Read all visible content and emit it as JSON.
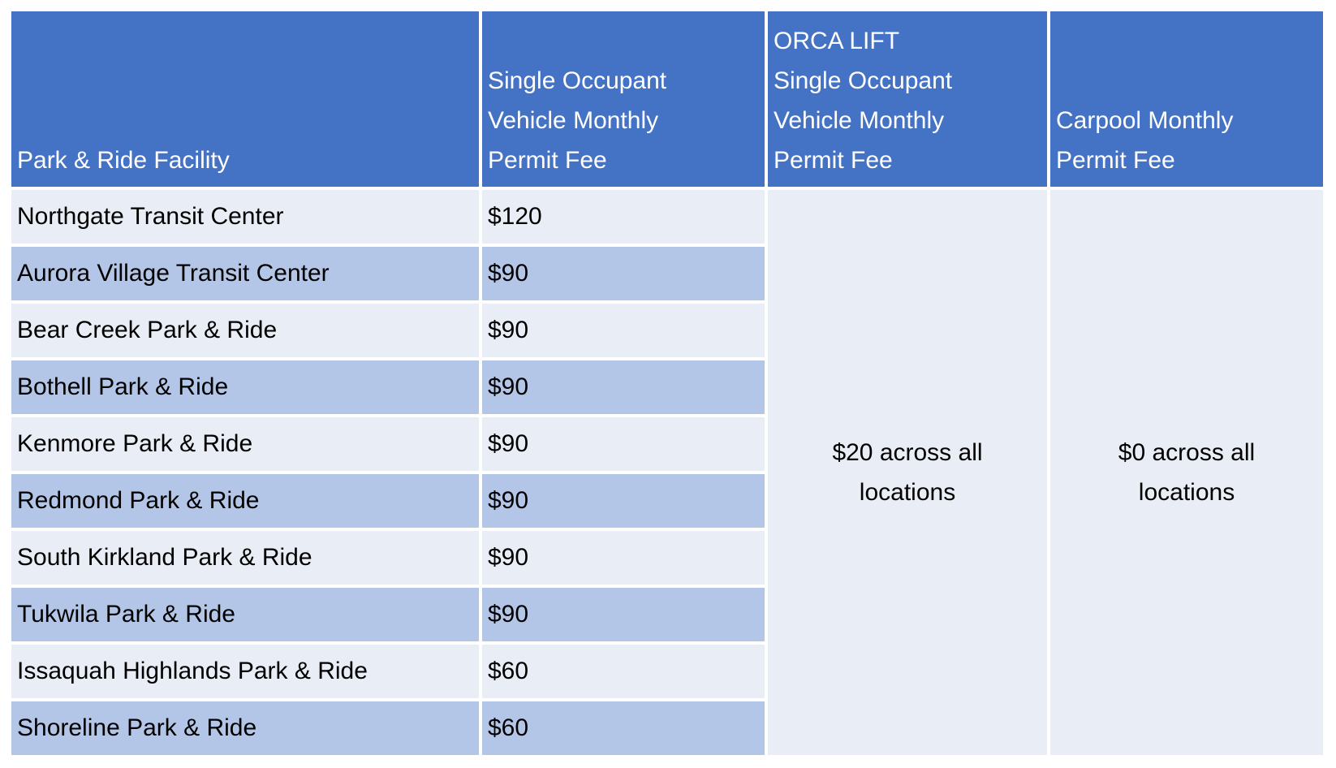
{
  "table": {
    "columns": [
      {
        "label": "Park & Ride Facility"
      },
      {
        "label": "Single Occupant\nVehicle Monthly\nPermit Fee"
      },
      {
        "label": "ORCA LIFT\nSingle Occupant\nVehicle Monthly\nPermit Fee"
      },
      {
        "label": "Carpool Monthly\nPermit Fee"
      }
    ],
    "rows": [
      {
        "facility": "Northgate Transit Center",
        "sov_fee": "$120"
      },
      {
        "facility": "Aurora Village Transit Center",
        "sov_fee": "$90"
      },
      {
        "facility": "Bear Creek Park & Ride",
        "sov_fee": "$90"
      },
      {
        "facility": "Bothell Park & Ride",
        "sov_fee": "$90"
      },
      {
        "facility": "Kenmore Park & Ride",
        "sov_fee": "$90"
      },
      {
        "facility": "Redmond Park & Ride",
        "sov_fee": "$90"
      },
      {
        "facility": "South Kirkland Park & Ride",
        "sov_fee": "$90"
      },
      {
        "facility": "Tukwila Park & Ride",
        "sov_fee": "$90"
      },
      {
        "facility": "Issaquah Highlands Park & Ride",
        "sov_fee": "$60"
      },
      {
        "facility": "Shoreline Park & Ride",
        "sov_fee": "$60"
      }
    ],
    "orca_lift_note": "$20 across all locations",
    "carpool_note": "$0 across all locations"
  },
  "colors": {
    "header_bg": "#4472C4",
    "band_row_bg": "#B4C6E7",
    "light_row_bg": "#E9EDF6",
    "merged_cell_bg": "#E9EDF6",
    "header_text": "#FFFFFF",
    "body_text": "#000000",
    "page_bg": "#FFFFFF"
  }
}
